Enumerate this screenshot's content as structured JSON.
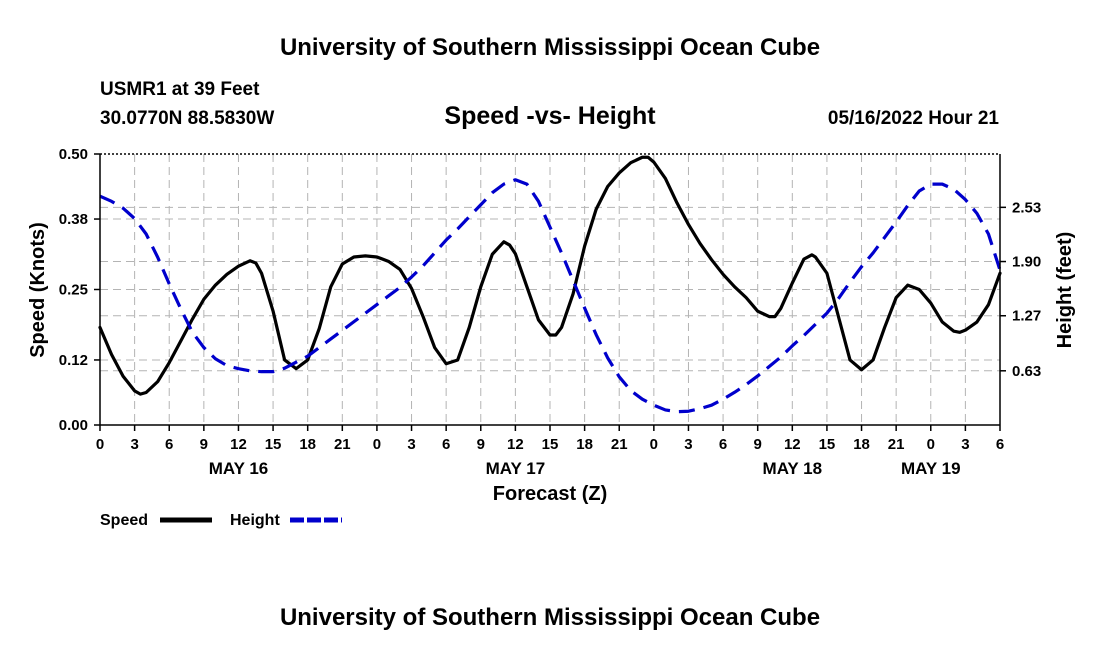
{
  "header": {
    "title": "University of Southern Mississippi Ocean Cube",
    "station": "USMR1 at 39 Feet",
    "coords": "30.0770N  88.5830W",
    "datetime": "05/16/2022 Hour 21",
    "footer_title": "University of Southern Mississippi Ocean Cube"
  },
  "chart_data": {
    "type": "line",
    "title": "Speed -vs- Height",
    "xlabel": "Forecast (Z)",
    "ylabel": "Speed (Knots)",
    "y2label": "Height (feet)",
    "x_hours": [
      0,
      3,
      6,
      9,
      12,
      15,
      18,
      21,
      24,
      27,
      30,
      33,
      36,
      39,
      42,
      45,
      48,
      51,
      54,
      57,
      60,
      63,
      66,
      69,
      72,
      75,
      78
    ],
    "x_tick_labels": [
      "0",
      "3",
      "6",
      "9",
      "12",
      "15",
      "18",
      "21",
      "0",
      "3",
      "6",
      "9",
      "12",
      "15",
      "18",
      "21",
      "0",
      "3",
      "6",
      "9",
      "12",
      "15",
      "18",
      "21",
      "0",
      "3",
      "6"
    ],
    "day_labels": [
      {
        "label": "MAY 16",
        "hour": 12
      },
      {
        "label": "MAY 17",
        "hour": 36
      },
      {
        "label": "MAY 18",
        "hour": 60
      },
      {
        "label": "MAY 19",
        "hour": 72
      }
    ],
    "xlim": [
      0,
      78
    ],
    "ylim": [
      0,
      0.5
    ],
    "y_ticks": [
      0.0,
      0.12,
      0.25,
      0.38,
      0.5
    ],
    "y_tick_labels": [
      "0.00",
      "0.12",
      "0.25",
      "0.38",
      "0.50"
    ],
    "y2lim": [
      0,
      3.15
    ],
    "y2_ticks": [
      0.63,
      1.27,
      1.9,
      2.53
    ],
    "y2_tick_labels": [
      "0.63",
      "1.27",
      "1.90",
      "2.53"
    ],
    "series": [
      {
        "name": "Speed",
        "axis": "left",
        "color": "#000000",
        "dash": "solid",
        "points": [
          [
            0,
            0.18
          ],
          [
            1,
            0.13
          ],
          [
            2,
            0.09
          ],
          [
            3,
            0.063
          ],
          [
            3.5,
            0.057
          ],
          [
            4,
            0.06
          ],
          [
            5,
            0.08
          ],
          [
            6,
            0.115
          ],
          [
            7,
            0.155
          ],
          [
            8,
            0.195
          ],
          [
            9,
            0.232
          ],
          [
            10,
            0.258
          ],
          [
            11,
            0.278
          ],
          [
            12,
            0.293
          ],
          [
            13,
            0.303
          ],
          [
            13.5,
            0.299
          ],
          [
            14,
            0.28
          ],
          [
            15,
            0.21
          ],
          [
            16,
            0.12
          ],
          [
            17,
            0.104
          ],
          [
            18,
            0.12
          ],
          [
            19,
            0.178
          ],
          [
            20,
            0.255
          ],
          [
            21,
            0.297
          ],
          [
            22,
            0.31
          ],
          [
            23,
            0.312
          ],
          [
            24,
            0.31
          ],
          [
            25,
            0.302
          ],
          [
            26,
            0.287
          ],
          [
            27,
            0.252
          ],
          [
            28,
            0.2
          ],
          [
            29,
            0.143
          ],
          [
            30,
            0.113
          ],
          [
            31,
            0.12
          ],
          [
            32,
            0.18
          ],
          [
            33,
            0.255
          ],
          [
            34,
            0.315
          ],
          [
            35,
            0.338
          ],
          [
            35.5,
            0.332
          ],
          [
            36,
            0.316
          ],
          [
            37,
            0.255
          ],
          [
            38,
            0.194
          ],
          [
            39,
            0.166
          ],
          [
            39.5,
            0.166
          ],
          [
            40,
            0.18
          ],
          [
            41,
            0.242
          ],
          [
            42,
            0.33
          ],
          [
            43,
            0.398
          ],
          [
            44,
            0.44
          ],
          [
            45,
            0.465
          ],
          [
            46,
            0.484
          ],
          [
            47,
            0.494
          ],
          [
            47.5,
            0.494
          ],
          [
            48,
            0.485
          ],
          [
            49,
            0.455
          ],
          [
            50,
            0.41
          ],
          [
            51,
            0.37
          ],
          [
            52,
            0.335
          ],
          [
            53,
            0.305
          ],
          [
            54,
            0.278
          ],
          [
            55,
            0.255
          ],
          [
            56,
            0.235
          ],
          [
            57,
            0.21
          ],
          [
            58,
            0.2
          ],
          [
            58.5,
            0.2
          ],
          [
            59,
            0.215
          ],
          [
            60,
            0.262
          ],
          [
            61,
            0.306
          ],
          [
            61.7,
            0.314
          ],
          [
            62,
            0.31
          ],
          [
            63,
            0.28
          ],
          [
            64,
            0.2
          ],
          [
            65,
            0.12
          ],
          [
            66,
            0.102
          ],
          [
            67,
            0.12
          ],
          [
            68,
            0.18
          ],
          [
            69,
            0.235
          ],
          [
            70,
            0.258
          ],
          [
            71,
            0.25
          ],
          [
            72,
            0.225
          ],
          [
            73,
            0.19
          ],
          [
            74,
            0.173
          ],
          [
            74.5,
            0.171
          ],
          [
            75,
            0.175
          ],
          [
            76,
            0.19
          ],
          [
            77,
            0.222
          ],
          [
            78,
            0.28
          ]
        ]
      },
      {
        "name": "Height",
        "axis": "right",
        "color": "#0000cc",
        "dash": "dashed",
        "points": [
          [
            0,
            2.66
          ],
          [
            1,
            2.6
          ],
          [
            2,
            2.52
          ],
          [
            3,
            2.4
          ],
          [
            4,
            2.22
          ],
          [
            5,
            1.95
          ],
          [
            6,
            1.64
          ],
          [
            7,
            1.35
          ],
          [
            8,
            1.08
          ],
          [
            9,
            0.9
          ],
          [
            10,
            0.77
          ],
          [
            11,
            0.69
          ],
          [
            12,
            0.655
          ],
          [
            13,
            0.63
          ],
          [
            14,
            0.62
          ],
          [
            15,
            0.62
          ],
          [
            16,
            0.66
          ],
          [
            17,
            0.73
          ],
          [
            18,
            0.8
          ],
          [
            19,
            0.9
          ],
          [
            20,
            1.0
          ],
          [
            21,
            1.1
          ],
          [
            22,
            1.2
          ],
          [
            23,
            1.3
          ],
          [
            24,
            1.4
          ],
          [
            25,
            1.5
          ],
          [
            26,
            1.6
          ],
          [
            27,
            1.72
          ],
          [
            28,
            1.85
          ],
          [
            29,
            2.0
          ],
          [
            30,
            2.15
          ],
          [
            31,
            2.28
          ],
          [
            32,
            2.42
          ],
          [
            33,
            2.56
          ],
          [
            34,
            2.7
          ],
          [
            35,
            2.8
          ],
          [
            36,
            2.85
          ],
          [
            37,
            2.8
          ],
          [
            38,
            2.6
          ],
          [
            39,
            2.3
          ],
          [
            40,
            2.0
          ],
          [
            41,
            1.68
          ],
          [
            42,
            1.36
          ],
          [
            43,
            1.05
          ],
          [
            44,
            0.78
          ],
          [
            45,
            0.56
          ],
          [
            46,
            0.4
          ],
          [
            47,
            0.3
          ],
          [
            48,
            0.23
          ],
          [
            49,
            0.175
          ],
          [
            50,
            0.155
          ],
          [
            51,
            0.16
          ],
          [
            52,
            0.19
          ],
          [
            53,
            0.23
          ],
          [
            54,
            0.3
          ],
          [
            55,
            0.38
          ],
          [
            56,
            0.47
          ],
          [
            57,
            0.57
          ],
          [
            58,
            0.68
          ],
          [
            59,
            0.79
          ],
          [
            60,
            0.92
          ],
          [
            61,
            1.04
          ],
          [
            62,
            1.17
          ],
          [
            63,
            1.3
          ],
          [
            64,
            1.47
          ],
          [
            65,
            1.66
          ],
          [
            66,
            1.84
          ],
          [
            67,
            2.0
          ],
          [
            68,
            2.18
          ],
          [
            69,
            2.36
          ],
          [
            70,
            2.55
          ],
          [
            71,
            2.72
          ],
          [
            72,
            2.8
          ],
          [
            73,
            2.8
          ],
          [
            74,
            2.74
          ],
          [
            75,
            2.62
          ],
          [
            76,
            2.46
          ],
          [
            77,
            2.22
          ],
          [
            78,
            1.8
          ]
        ]
      }
    ],
    "legend": [
      {
        "label": "Speed",
        "color": "#000000",
        "dash": "solid"
      },
      {
        "label": "Height",
        "color": "#0000cc",
        "dash": "dashed"
      }
    ]
  }
}
